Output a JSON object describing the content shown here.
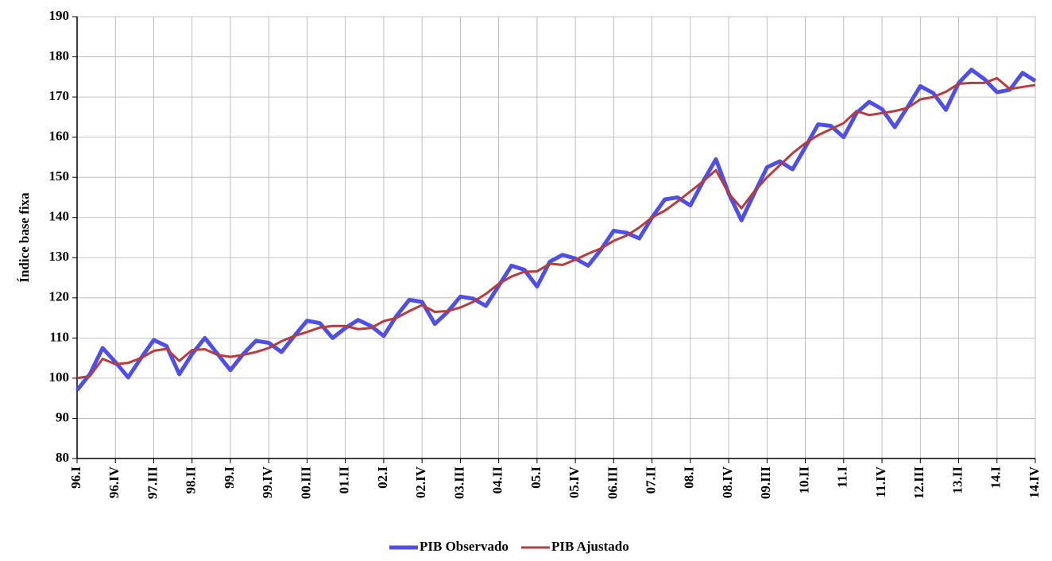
{
  "chart_data": {
    "type": "line",
    "y_label": "Índice base fixa",
    "categories": [
      "96.I",
      null,
      null,
      "96.IV",
      null,
      null,
      "97.III",
      null,
      null,
      "98.II",
      null,
      null,
      "99.I",
      null,
      null,
      "99.IV",
      null,
      null,
      "00.III",
      null,
      null,
      "01.II",
      null,
      null,
      "02.I",
      null,
      null,
      "02.IV",
      null,
      null,
      "03.III",
      null,
      null,
      "04.II",
      null,
      null,
      "05.I",
      null,
      null,
      "05.IV",
      null,
      null,
      "06.III",
      null,
      null,
      "07.II",
      null,
      null,
      "08.I",
      null,
      null,
      "08.IV",
      null,
      null,
      "09.III",
      null,
      null,
      "10.II",
      null,
      null,
      "11.I",
      null,
      null,
      "11.IV",
      null,
      null,
      "12.III",
      null,
      null,
      "13.II",
      null,
      null,
      "14.I",
      null,
      null,
      "14.IV"
    ],
    "series": [
      {
        "name": "PIB Observado",
        "color": "#4f4fe6",
        "values": [
          97,
          101,
          107.5,
          104,
          100.2,
          105,
          109.5,
          108,
          101,
          106,
          110,
          106,
          102,
          106,
          109.3,
          108.8,
          106.5,
          110.5,
          114.3,
          113.7,
          110,
          112.5,
          114.5,
          113,
          110.5,
          115.5,
          119.5,
          119,
          113.5,
          116.5,
          120.3,
          119.8,
          118,
          123,
          128,
          127,
          122.8,
          129,
          130.7,
          129.8,
          128,
          132,
          136.7,
          136.2,
          134.8,
          140,
          144.5,
          145,
          143,
          149,
          154.5,
          146,
          139.3,
          146,
          152.5,
          154,
          152,
          157.5,
          163.2,
          162.8,
          160,
          166,
          168.8,
          167,
          162.5,
          167.5,
          172.7,
          171,
          166.8,
          173.5,
          176.8,
          174.5,
          171.2,
          171.8,
          176,
          174
        ]
      },
      {
        "name": "PIB Ajustado",
        "color": "#b83c3c",
        "values": [
          100,
          100.5,
          104.8,
          103.5,
          103.8,
          105,
          106.8,
          107.3,
          104.3,
          107,
          107.2,
          105.8,
          105.3,
          105.8,
          106.5,
          107.5,
          109.2,
          110.5,
          111.5,
          112.6,
          113,
          113,
          112.2,
          112.5,
          114.2,
          115,
          116.7,
          118.2,
          116.5,
          116.7,
          117.6,
          119,
          121,
          123.5,
          125.3,
          126.5,
          126.6,
          128.5,
          128.2,
          129.5,
          131,
          132.3,
          134.2,
          135.5,
          137.5,
          140,
          141.7,
          144,
          146.5,
          149,
          151.8,
          146,
          142.3,
          146.5,
          150,
          153,
          156,
          158.5,
          160.5,
          162,
          163.5,
          166.5,
          165.5,
          166,
          166.5,
          167.3,
          169.4,
          170,
          171.3,
          173.3,
          173.5,
          173.5,
          174.7,
          172,
          172.5,
          173
        ]
      }
    ],
    "ylim": [
      80,
      190
    ],
    "yticks": [
      80,
      90,
      100,
      110,
      120,
      130,
      140,
      150,
      160,
      170,
      180,
      190
    ],
    "grid": true,
    "legend": "bottom"
  }
}
